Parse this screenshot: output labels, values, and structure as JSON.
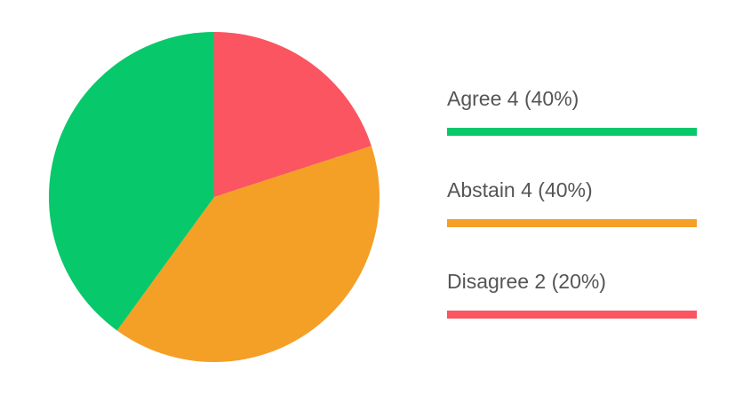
{
  "chart_data": {
    "type": "pie",
    "title": "",
    "start_angle_deg": 0,
    "direction": "clockwise",
    "slices": [
      {
        "label": "Disagree",
        "value": 2,
        "percent": "20%",
        "color": "#fa5561"
      },
      {
        "label": "Abstain",
        "value": 4,
        "percent": "40%",
        "color": "#f49f26"
      },
      {
        "label": "Agree",
        "value": 4,
        "percent": "40%",
        "color": "#07c86b"
      }
    ],
    "legend": {
      "placement": "right",
      "items": [
        {
          "text": "Agree 4 (40%)",
          "color": "#07c86b"
        },
        {
          "text": "Abstain 4 (40%)",
          "color": "#f49f26"
        },
        {
          "text": "Disagree 2 (20%)",
          "color": "#fa5561"
        }
      ]
    }
  }
}
